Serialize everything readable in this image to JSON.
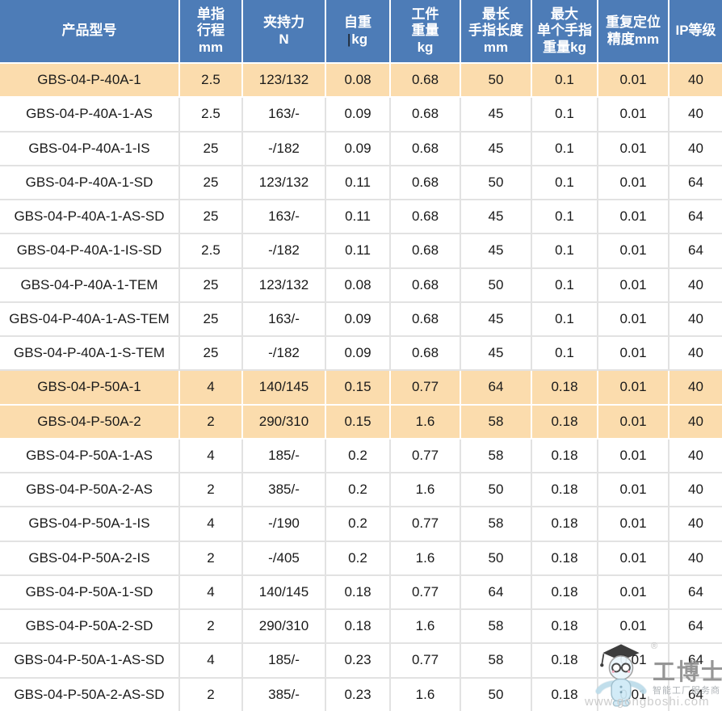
{
  "colors": {
    "header_bg": "#4D7CB7",
    "header_text": "#FFFFFF",
    "highlight_row_bg": "#FBDCAD",
    "row_bg": "#FFFFFF",
    "grid_line": "#E2E2E2",
    "body_text": "#1A1A1A"
  },
  "table": {
    "columns": [
      {
        "id": "model",
        "lines": [
          "产品型号"
        ]
      },
      {
        "id": "stroke",
        "lines": [
          "单指",
          "行程",
          "mm"
        ]
      },
      {
        "id": "grip-force",
        "lines": [
          "夹持力",
          "N"
        ]
      },
      {
        "id": "self-weight",
        "lines": [
          "自重",
          "kg"
        ],
        "caret": "|",
        "caret_line": 1
      },
      {
        "id": "workpiece-weight",
        "lines": [
          "工件",
          "重量",
          "kg"
        ]
      },
      {
        "id": "max-finger-length",
        "lines": [
          "最长",
          "手指长度",
          "mm"
        ]
      },
      {
        "id": "max-finger-weight",
        "lines": [
          "最大",
          "单个手指",
          "重量kg"
        ]
      },
      {
        "id": "repeatability",
        "lines": [
          "重复定位",
          "精度mm"
        ]
      },
      {
        "id": "ip-rating",
        "lines": [
          "IP等级"
        ]
      }
    ],
    "rows": [
      {
        "model": "GBS-04-P-40A-1",
        "values": [
          "2.5",
          "123/132",
          "0.08",
          "0.68",
          "50",
          "0.1",
          "0.01",
          "40"
        ],
        "highlight": true
      },
      {
        "model": "GBS-04-P-40A-1-AS",
        "values": [
          "2.5",
          "163/-",
          "0.09",
          "0.68",
          "45",
          "0.1",
          "0.01",
          "40"
        ],
        "highlight": false
      },
      {
        "model": "GBS-04-P-40A-1-IS",
        "values": [
          "25",
          "-/182",
          "0.09",
          "0.68",
          "45",
          "0.1",
          "0.01",
          "40"
        ],
        "highlight": false
      },
      {
        "model": "GBS-04-P-40A-1-SD",
        "values": [
          "25",
          "123/132",
          "0.11",
          "0.68",
          "50",
          "0.1",
          "0.01",
          "64"
        ],
        "highlight": false
      },
      {
        "model": "GBS-04-P-40A-1-AS-SD",
        "values": [
          "25",
          "163/-",
          "0.11",
          "0.68",
          "45",
          "0.1",
          "0.01",
          "64"
        ],
        "highlight": false
      },
      {
        "model": "GBS-04-P-40A-1-IS-SD",
        "values": [
          "2.5",
          "-/182",
          "0.11",
          "0.68",
          "45",
          "0.1",
          "0.01",
          "64"
        ],
        "highlight": false
      },
      {
        "model": "GBS-04-P-40A-1-TEM",
        "values": [
          "25",
          "123/132",
          "0.08",
          "0.68",
          "50",
          "0.1",
          "0.01",
          "40"
        ],
        "highlight": false
      },
      {
        "model": "GBS-04-P-40A-1-AS-TEM",
        "values": [
          "25",
          "163/-",
          "0.09",
          "0.68",
          "45",
          "0.1",
          "0.01",
          "40"
        ],
        "highlight": false
      },
      {
        "model": "GBS-04-P-40A-1-S-TEM",
        "values": [
          "25",
          "-/182",
          "0.09",
          "0.68",
          "45",
          "0.1",
          "0.01",
          "40"
        ],
        "highlight": false
      },
      {
        "model": "GBS-04-P-50A-1",
        "values": [
          "4",
          "140/145",
          "0.15",
          "0.77",
          "64",
          "0.18",
          "0.01",
          "40"
        ],
        "highlight": true
      },
      {
        "model": "GBS-04-P-50A-2",
        "values": [
          "2",
          "290/310",
          "0.15",
          "1.6",
          "58",
          "0.18",
          "0.01",
          "40"
        ],
        "highlight": true
      },
      {
        "model": "GBS-04-P-50A-1-AS",
        "values": [
          "4",
          "185/-",
          "0.2",
          "0.77",
          "58",
          "0.18",
          "0.01",
          "40"
        ],
        "highlight": false
      },
      {
        "model": "GBS-04-P-50A-2-AS",
        "values": [
          "2",
          "385/-",
          "0.2",
          "1.6",
          "50",
          "0.18",
          "0.01",
          "40"
        ],
        "highlight": false
      },
      {
        "model": "GBS-04-P-50A-1-IS",
        "values": [
          "4",
          "-/190",
          "0.2",
          "0.77",
          "58",
          "0.18",
          "0.01",
          "40"
        ],
        "highlight": false
      },
      {
        "model": "GBS-04-P-50A-2-IS",
        "values": [
          "2",
          "-/405",
          "0.2",
          "1.6",
          "50",
          "0.18",
          "0.01",
          "40"
        ],
        "highlight": false
      },
      {
        "model": "GBS-04-P-50A-1-SD",
        "values": [
          "4",
          "140/145",
          "0.18",
          "0.77",
          "64",
          "0.18",
          "0.01",
          "64"
        ],
        "highlight": false
      },
      {
        "model": "GBS-04-P-50A-2-SD",
        "values": [
          "2",
          "290/310",
          "0.18",
          "1.6",
          "58",
          "0.18",
          "0.01",
          "64"
        ],
        "highlight": false
      },
      {
        "model": "GBS-04-P-50A-1-AS-SD",
        "values": [
          "4",
          "185/-",
          "0.23",
          "0.77",
          "58",
          "0.18",
          "0.01",
          "64"
        ],
        "highlight": false
      },
      {
        "model": "GBS-04-P-50A-2-AS-SD",
        "values": [
          "2",
          "385/-",
          "0.23",
          "1.6",
          "50",
          "0.18",
          "0.01",
          "64"
        ],
        "highlight": false
      }
    ]
  },
  "watermark": {
    "logo_icon": "gongboshi-robot-logo",
    "registered_mark": "®",
    "brand": "工博士",
    "tagline": "智能工厂服务商",
    "url": "www.gongboshi.com"
  }
}
